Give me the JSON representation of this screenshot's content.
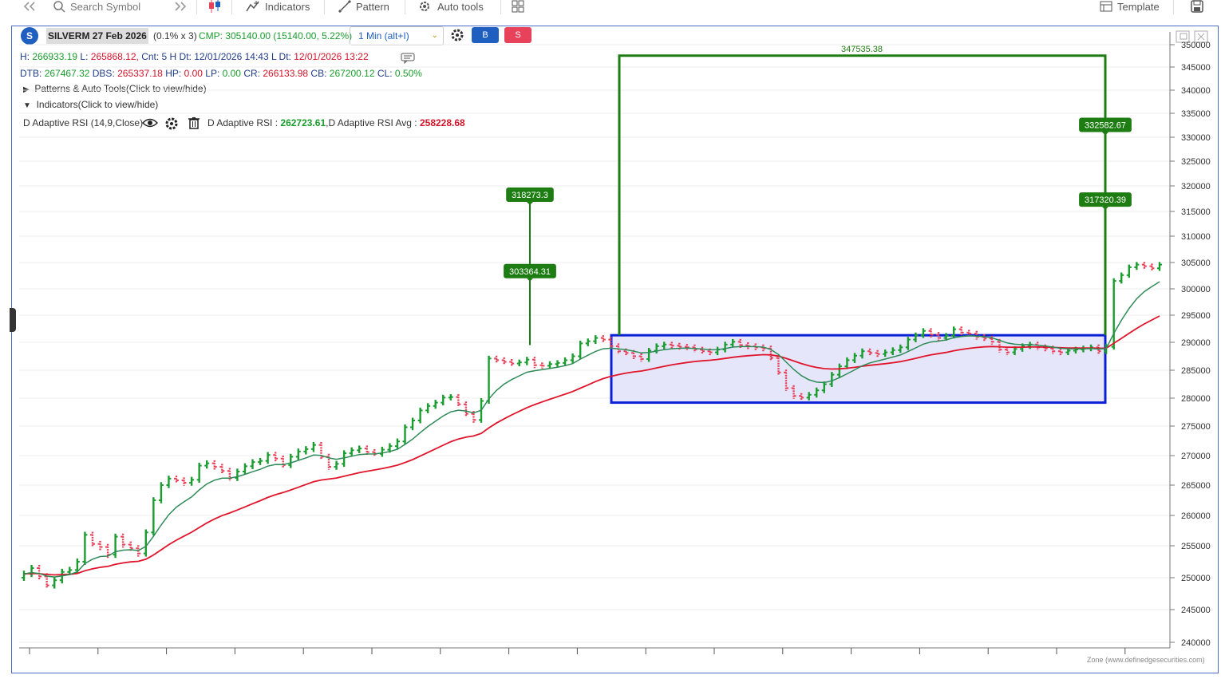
{
  "toolbar": {
    "search_placeholder": "Search Symbol",
    "indicators_label": "Indicators",
    "pattern_label": "Pattern",
    "auto_tools_label": "Auto tools",
    "template_label": "Template"
  },
  "symbol": {
    "badge": "S",
    "name": "SILVERM 27 Feb 2026",
    "multiplier": "(0.1% x 3)",
    "cmp": "CMP: 305140.00 (15140.00, 5.22%)",
    "interval": "1 Min (alt+I)",
    "buy_label": "B",
    "sell_label": "S"
  },
  "stats": {
    "line1": {
      "h_label": "H:",
      "h": "266933.19",
      "l_label": "L:",
      "l": "265868.12,",
      "cnt": "Cnt: 5 H Dt: 12/01/2026 14:43 L Dt:",
      "l_dt": "12/01/2026 13:22"
    },
    "line2": {
      "dtb_label": "DTB:",
      "dtb": "267467.32",
      "dbs_label": "DBS:",
      "dbs": "265337.18",
      "hp_label": "HP:",
      "hp": "0.00",
      "lp_label": "LP:",
      "lp": "0.00",
      "cr_label": "CR:",
      "cr": "266133.98",
      "cb_label": "CB:",
      "cb": "267200.12",
      "cl_label": "CL:",
      "cl": "0.50%"
    },
    "patterns_toggle": "Patterns & Auto Tools(Click to view/hide)",
    "indicators_toggle": "Indicators(Click to view/hide)"
  },
  "indicator": {
    "name": "D Adaptive RSI (14,9,Close)",
    "value_label": "D Adaptive RSI :",
    "value": "262723.61",
    "avg_label": ",D Adaptive RSI Avg :",
    "avg": "258228.68"
  },
  "watermark": "Zone (www.definedgesecurities.com)",
  "colors": {
    "up": "#1a9c2e",
    "down": "#e8415a",
    "fast_line": "#2e8b57",
    "slow_line": "#e0142a",
    "box_border": "#0a1fd6",
    "box_fill": "#e6e6fa",
    "annotation": "#1e7d12"
  },
  "chart_data": {
    "type": "bar",
    "ylim": [
      240000,
      350000
    ],
    "y_ticks": [
      240000,
      245000,
      250000,
      255000,
      260000,
      265000,
      270000,
      275000,
      280000,
      285000,
      290000,
      295000,
      300000,
      305000,
      310000,
      315000,
      320000,
      325000,
      330000,
      335000,
      340000,
      345000,
      350000
    ],
    "annotations": [
      {
        "label": "347535.38",
        "value": 347535.38
      },
      {
        "label": "332582.67",
        "value": 332582.67
      },
      {
        "label": "317320.39",
        "value": 317320.39
      },
      {
        "label": "318273.3",
        "value": 318273.3
      },
      {
        "label": "303364.31",
        "value": 303364.31
      }
    ],
    "consolidation_box": {
      "top": 291300,
      "bottom": 279200
    },
    "ohlc_closes": [
      250600,
      251500,
      250200,
      248800,
      249600,
      250900,
      251200,
      252500,
      256800,
      255300,
      254800,
      253600,
      256500,
      255200,
      254600,
      253800,
      257200,
      262500,
      265000,
      266100,
      265800,
      265400,
      265900,
      268300,
      268700,
      268100,
      267400,
      266200,
      267300,
      268200,
      268900,
      269100,
      270100,
      269500,
      268400,
      269800,
      270700,
      271100,
      271800,
      269800,
      268100,
      268600,
      270400,
      270900,
      271200,
      270600,
      270300,
      271000,
      271600,
      272400,
      274800,
      276000,
      277800,
      278600,
      279200,
      280100,
      280200,
      278900,
      277200,
      276100,
      279500,
      287100,
      286800,
      286500,
      286200,
      286400,
      286900,
      285900,
      285800,
      286100,
      286300,
      286800,
      287500,
      289800,
      290200,
      290800,
      290500,
      289300,
      288400,
      288100,
      287500,
      287000,
      288500,
      289300,
      289600,
      289400,
      289200,
      289100,
      288700,
      288400,
      288200,
      288700,
      289600,
      290100,
      289500,
      289300,
      289100,
      288900,
      287200,
      284600,
      281800,
      280400,
      280100,
      280600,
      281400,
      282500,
      284200,
      285700,
      286800,
      287600,
      288400,
      288100,
      287900,
      288200,
      288600,
      289100,
      290500,
      291300,
      292100,
      291400,
      290800,
      291200,
      292400,
      291800,
      291600,
      291000,
      290700,
      290100,
      288700,
      288200,
      288800,
      289300,
      289600,
      289100,
      288900,
      288400,
      288200,
      288500,
      288700,
      288900,
      289100,
      288400,
      289200,
      301500,
      302600,
      304100,
      304600,
      304300,
      303900,
      304600
    ]
  }
}
